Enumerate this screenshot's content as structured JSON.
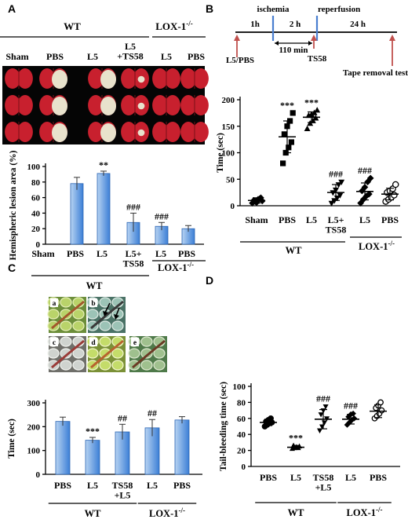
{
  "figure": {
    "panel_labels": [
      "A",
      "B",
      "C",
      "D"
    ]
  },
  "panel_a": {
    "group_wt": "WT",
    "group_lox": "LOX-1",
    "lox_sup": "-/-",
    "photo_labels": [
      "Sham",
      "PBS",
      "L5",
      "L5\n+TS58",
      "L5",
      "PBS"
    ],
    "colors": {
      "bar_light": "#b7d3f2",
      "bar_dark": "#3c7fd6",
      "tissue": "#c8202e"
    }
  },
  "panel_b": {
    "timeline": {
      "labels": [
        "1h",
        "ischemia",
        "2 h",
        "reperfusion",
        "24 h",
        "110 min",
        "L5/PBS",
        "TS58",
        "Tape removal test"
      ],
      "colors": {
        "blue_marker": "#4a7fd0",
        "red_marker": "#c0504d"
      }
    }
  },
  "panel_c": {
    "image_labels": [
      "a",
      "b",
      "c",
      "d",
      "e"
    ],
    "group_wt": "WT",
    "group_lox": "LOX-1",
    "lox_sup": "-/-"
  },
  "chart_data": [
    {
      "id": "A",
      "type": "bar",
      "categories": [
        "Sham",
        "PBS",
        "L5",
        "L5+\nTS58",
        "L5",
        "PBS"
      ],
      "values": [
        0,
        78,
        91,
        28,
        23,
        20
      ],
      "errors": [
        0,
        8,
        3,
        12,
        5,
        4
      ],
      "annotations": [
        "",
        "",
        "**",
        "###",
        "###",
        ""
      ],
      "ylabel": "Hemispheric lesion area (%)",
      "ylim": [
        0,
        100
      ],
      "yticks": [
        0,
        20,
        40,
        60,
        80,
        100
      ],
      "groups": [
        {
          "label": "WT",
          "span": [
            0,
            3
          ]
        },
        {
          "label": "LOX-1-/-",
          "span": [
            4,
            5
          ]
        }
      ]
    },
    {
      "id": "B",
      "type": "scatter",
      "categories": [
        "Sham",
        "PBS",
        "L5",
        "L5+\nTS58",
        "L5",
        "PBS"
      ],
      "means": [
        10,
        130,
        167,
        25,
        27,
        22
      ],
      "sd": [
        5,
        30,
        10,
        15,
        16,
        11
      ],
      "points": [
        [
          5,
          8,
          12,
          15,
          10,
          6,
          13,
          9
        ],
        [
          80,
          100,
          110,
          120,
          135,
          150,
          160,
          175
        ],
        [
          145,
          155,
          160,
          165,
          170,
          172,
          175,
          180
        ],
        [
          5,
          10,
          15,
          20,
          25,
          30,
          40,
          45
        ],
        [
          5,
          12,
          18,
          22,
          28,
          35,
          45,
          52
        ],
        [
          8,
          12,
          16,
          20,
          25,
          28,
          32,
          40
        ]
      ],
      "markers": [
        "diamond",
        "square",
        "triangle",
        "triangle-down",
        "diamond",
        "circle-open"
      ],
      "annotations": [
        "",
        "***",
        "***",
        "###",
        "###",
        ""
      ],
      "ylabel": "Time (sec)",
      "ylim": [
        0,
        200
      ],
      "yticks": [
        0,
        50,
        100,
        150,
        200
      ],
      "groups": [
        {
          "label": "WT",
          "span": [
            0,
            3
          ]
        },
        {
          "label": "LOX-1-/-",
          "span": [
            4,
            5
          ]
        }
      ]
    },
    {
      "id": "C",
      "type": "bar",
      "categories": [
        "PBS",
        "L5",
        "TS58\n+L5",
        "L5",
        "PBS"
      ],
      "values": [
        222,
        143,
        178,
        195,
        228
      ],
      "errors": [
        18,
        12,
        32,
        35,
        14
      ],
      "annotations": [
        "",
        "***",
        "##",
        "##",
        ""
      ],
      "ylabel": "Time (sec)",
      "ylim": [
        0,
        300
      ],
      "yticks": [
        0,
        100,
        200,
        300
      ],
      "groups": [
        {
          "label": "WT",
          "span": [
            0,
            2
          ]
        },
        {
          "label": "LOX-1-/-",
          "span": [
            3,
            4
          ]
        }
      ]
    },
    {
      "id": "D",
      "type": "scatter",
      "categories": [
        "PBS",
        "L5",
        "TS58\n+L5",
        "L5",
        "PBS"
      ],
      "means": [
        55,
        24,
        59,
        59,
        69
      ],
      "sd": [
        4,
        2,
        12,
        6,
        8
      ],
      "points": [
        [
          50,
          52,
          54,
          55,
          56,
          58,
          60
        ],
        [
          22,
          23,
          24,
          25,
          26,
          24,
          23
        ],
        [
          45,
          50,
          55,
          60,
          65,
          70,
          75
        ],
        [
          52,
          55,
          58,
          60,
          62,
          65,
          66
        ],
        [
          60,
          63,
          66,
          70,
          73,
          76,
          80
        ]
      ],
      "markers": [
        "circle",
        "triangle",
        "triangle-down",
        "diamond",
        "circle-open"
      ],
      "annotations": [
        "",
        "***",
        "###",
        "###",
        ""
      ],
      "ylabel": "Tail-bleeding time (sec)",
      "ylim": [
        0,
        100
      ],
      "yticks": [
        0,
        20,
        40,
        60,
        80,
        100
      ],
      "groups": [
        {
          "label": "WT",
          "span": [
            0,
            2
          ]
        },
        {
          "label": "LOX-1-/-",
          "span": [
            3,
            4
          ]
        }
      ]
    }
  ]
}
